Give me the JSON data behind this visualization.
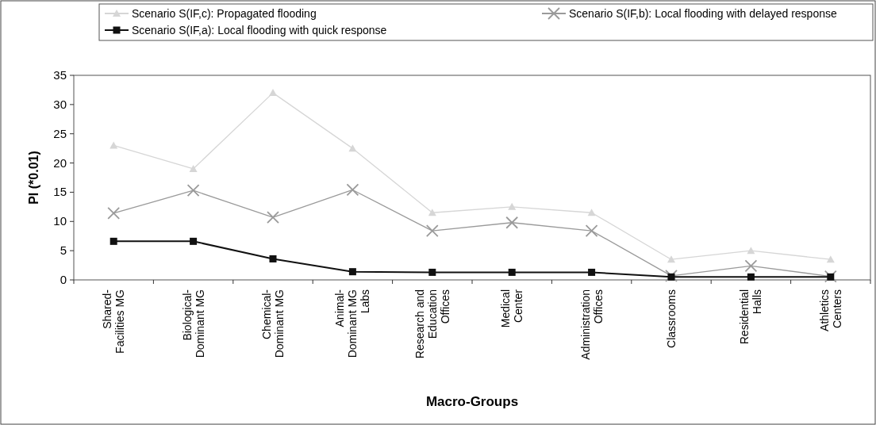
{
  "chart_data": {
    "type": "line",
    "xlabel": "Macro-Groups",
    "ylabel": "PI (*0.01)",
    "categories": [
      "Shared-Facilities MG",
      "Biological-Dominant MG",
      "Chemical-Dominant MG",
      "Animal-Dominant MG Labs",
      "Research and Education Offices",
      "Medical Center",
      "Administration Offices",
      "Classrooms",
      "Residential Halls",
      "Athletics Centers"
    ],
    "series": [
      {
        "name": "Scenario S(IF,c): Propagated flooding",
        "color": "#d6d6d6",
        "marker": "triangle",
        "values": [
          23,
          19,
          32,
          22.5,
          11.5,
          12.5,
          11.5,
          3.5,
          5,
          3.5
        ]
      },
      {
        "name": "Scenario S(IF,b): Local flooding with delayed response",
        "color": "#9a9a9a",
        "marker": "cross",
        "values": [
          11.4,
          15.3,
          10.7,
          15.4,
          8.4,
          9.8,
          8.4,
          0.7,
          2.4,
          0.6
        ]
      },
      {
        "name": "Scenario S(IF,a): Local flooding with quick response",
        "color": "#111111",
        "marker": "square",
        "values": [
          6.6,
          6.6,
          3.6,
          1.4,
          1.3,
          1.3,
          1.3,
          0.5,
          0.5,
          0.5
        ]
      }
    ],
    "ylim": [
      0,
      35
    ],
    "yticks": [
      0,
      5,
      10,
      15,
      20,
      25,
      30,
      35
    ],
    "grid": false,
    "legend": "top"
  }
}
